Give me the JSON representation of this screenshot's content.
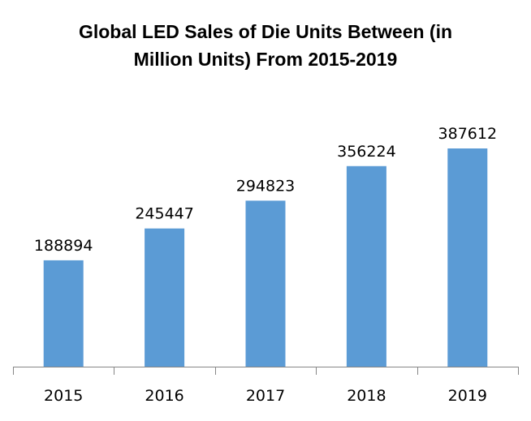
{
  "chart_data": {
    "type": "bar",
    "title_lines": [
      "Global LED Sales of Die Units Between (in",
      "Million Units) From 2015-2019"
    ],
    "categories": [
      "2015",
      "2016",
      "2017",
      "2018",
      "2019"
    ],
    "values": [
      188894,
      245447,
      294823,
      356224,
      387612
    ],
    "data_labels": [
      "188894",
      "245447",
      "294823",
      "356224",
      "387612"
    ],
    "xlabel": "",
    "ylabel": "",
    "ylim": [
      0,
      500000
    ],
    "grid": false,
    "legend": "none",
    "bar_color": "#5B9BD5",
    "axis_color": "#868686"
  }
}
